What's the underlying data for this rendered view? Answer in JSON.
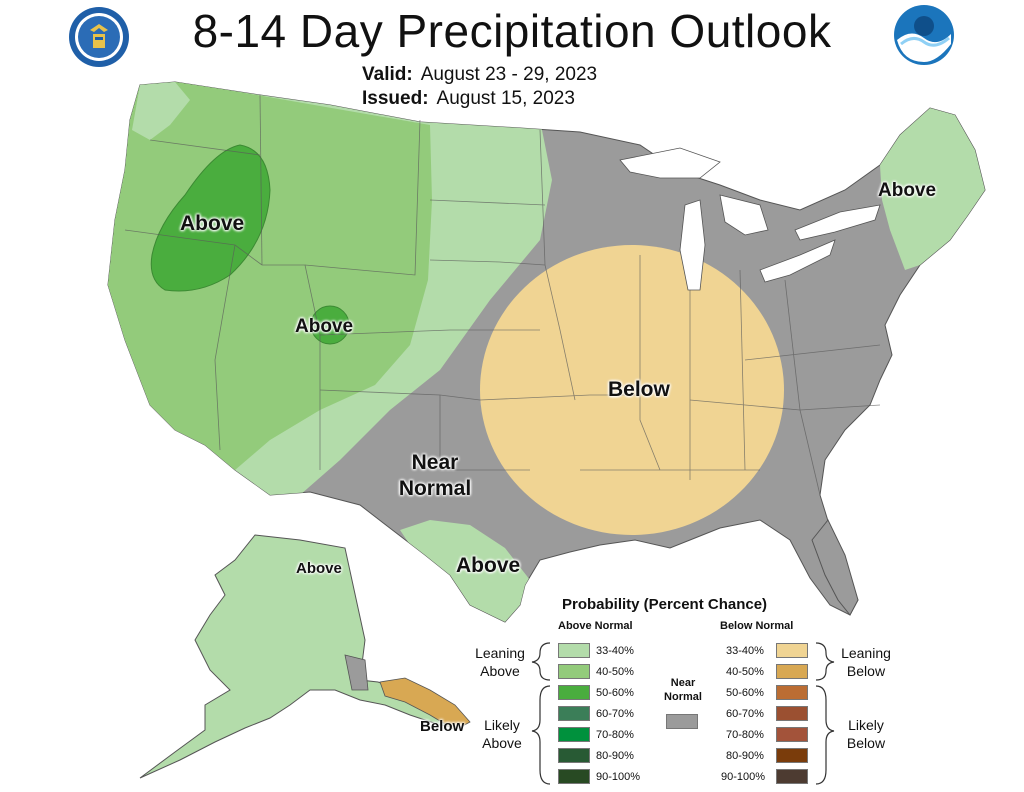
{
  "header": {
    "title": "8-14 Day Precipitation Outlook",
    "valid_label": "Valid:",
    "valid_value": "August 23 - 29, 2023",
    "issued_label": "Issued:",
    "issued_value": "August 15, 2023",
    "left_logo": "dept-of-commerce-seal-icon",
    "right_logo": "noaa-logo-icon"
  },
  "map_labels": {
    "nw_above": "Above",
    "colorado_above": "Above",
    "near_normal_1": "Near",
    "near_normal_2": "Normal",
    "below": "Below",
    "northeast_above": "Above",
    "texas_above": "Above",
    "alaska_above": "Above",
    "alaska_below": "Below"
  },
  "colors": {
    "above_33_40": "#b3dcaa",
    "above_40_50": "#93cb7b",
    "above_50_60": "#4aad3e",
    "above_60_70": "#3b7e58",
    "above_70_80": "#00913d",
    "above_80_90": "#285a34",
    "above_90_100": "#284a23",
    "below_33_40": "#f0d493",
    "below_40_50": "#d8a853",
    "below_50_60": "#bb6d33",
    "below_60_70": "#9b5031",
    "below_70_80": "#a3533a",
    "below_80_90": "#7a3c0b",
    "below_90_100": "#4d3b31",
    "near_normal": "#9b9b9b",
    "no_data": "#ffffff"
  },
  "legend": {
    "title": "Probability (Percent Chance)",
    "above_header": "Above Normal",
    "below_header": "Below Normal",
    "near_normal_1": "Near",
    "near_normal_2": "Normal",
    "above_items": [
      "33-40%",
      "40-50%",
      "50-60%",
      "60-70%",
      "70-80%",
      "80-90%",
      "90-100%"
    ],
    "below_items": [
      "33-40%",
      "40-50%",
      "50-60%",
      "60-70%",
      "70-80%",
      "80-90%",
      "90-100%"
    ],
    "leaning_above_1": "Leaning",
    "leaning_above_2": "Above",
    "likely_above_1": "Likely",
    "likely_above_2": "Above",
    "leaning_below_1": "Leaning",
    "leaning_below_2": "Below",
    "likely_below_1": "Likely",
    "likely_below_2": "Below"
  }
}
